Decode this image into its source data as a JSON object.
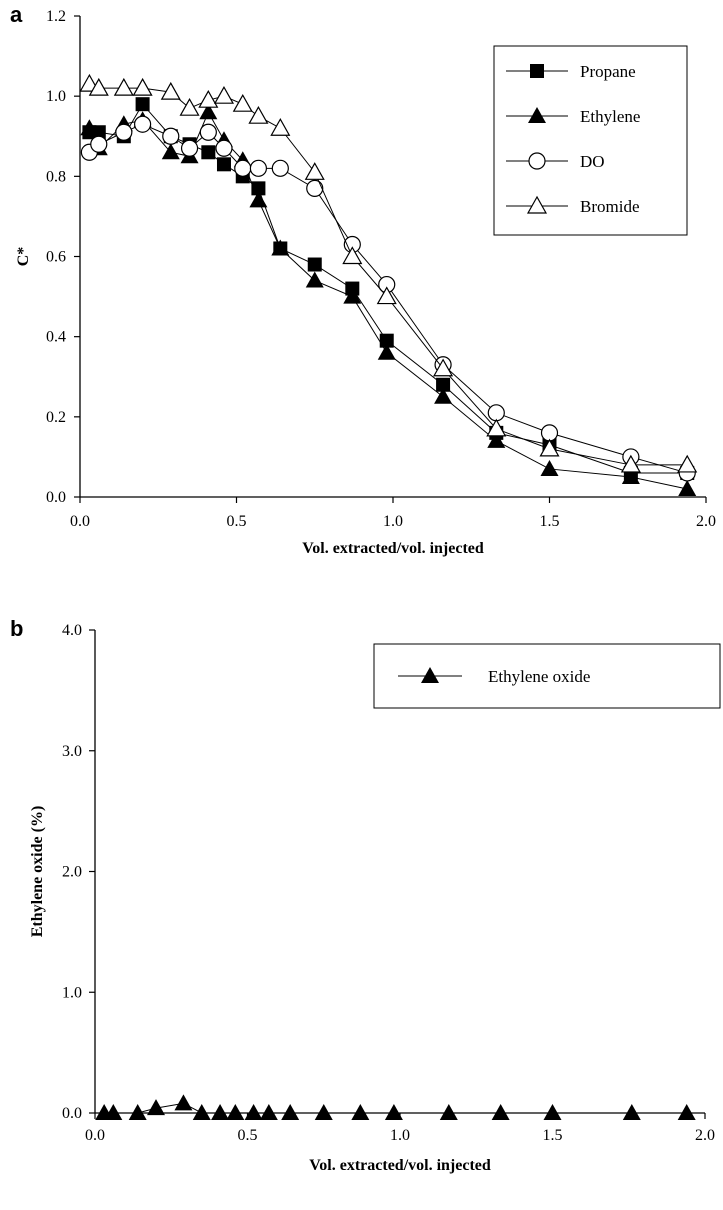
{
  "chart_data": [
    {
      "type": "line",
      "panel_label": "a",
      "title": "",
      "xlabel": "Vol. extracted/vol. injected",
      "ylabel": "C*",
      "xlim": [
        0.0,
        2.0
      ],
      "ylim": [
        0.0,
        1.2
      ],
      "xticks": [
        "0.0",
        "0.5",
        "1.0",
        "1.5",
        "2.0"
      ],
      "yticks": [
        "0.0",
        "0.2",
        "0.4",
        "0.6",
        "0.8",
        "1.0",
        "1.2"
      ],
      "grid": false,
      "legend_position": "top-right",
      "series": [
        {
          "name": "Propane",
          "marker": "filled-square",
          "x": [
            0.03,
            0.06,
            0.14,
            0.2,
            0.29,
            0.35,
            0.41,
            0.46,
            0.52,
            0.57,
            0.64,
            0.75,
            0.87,
            0.98,
            1.16,
            1.33,
            1.5,
            1.76,
            1.94
          ],
          "y": [
            0.91,
            0.91,
            0.9,
            0.98,
            0.9,
            0.88,
            0.86,
            0.83,
            0.8,
            0.77,
            0.62,
            0.58,
            0.52,
            0.39,
            0.28,
            0.16,
            0.13,
            0.06,
            0.06
          ]
        },
        {
          "name": "Ethylene",
          "marker": "filled-triangle",
          "x": [
            0.03,
            0.06,
            0.14,
            0.2,
            0.29,
            0.35,
            0.41,
            0.46,
            0.52,
            0.57,
            0.64,
            0.75,
            0.87,
            0.98,
            1.16,
            1.33,
            1.5,
            1.76,
            1.94
          ],
          "y": [
            0.92,
            0.87,
            0.93,
            0.94,
            0.86,
            0.85,
            0.96,
            0.89,
            0.84,
            0.74,
            0.62,
            0.54,
            0.5,
            0.36,
            0.25,
            0.14,
            0.07,
            0.05,
            0.02
          ]
        },
        {
          "name": "DO",
          "marker": "open-circle",
          "x": [
            0.03,
            0.06,
            0.14,
            0.2,
            0.29,
            0.35,
            0.41,
            0.46,
            0.52,
            0.57,
            0.64,
            0.75,
            0.87,
            0.98,
            1.16,
            1.33,
            1.5,
            1.76,
            1.94
          ],
          "y": [
            0.86,
            0.88,
            0.91,
            0.93,
            0.9,
            0.87,
            0.91,
            0.87,
            0.82,
            0.82,
            0.82,
            0.77,
            0.63,
            0.53,
            0.33,
            0.21,
            0.16,
            0.1,
            0.06
          ]
        },
        {
          "name": "Bromide",
          "marker": "open-triangle",
          "x": [
            0.03,
            0.06,
            0.14,
            0.2,
            0.29,
            0.35,
            0.41,
            0.46,
            0.52,
            0.57,
            0.64,
            0.75,
            0.87,
            0.98,
            1.16,
            1.33,
            1.5,
            1.76,
            1.94
          ],
          "y": [
            1.03,
            1.02,
            1.02,
            1.02,
            1.01,
            0.97,
            0.99,
            1.0,
            0.98,
            0.95,
            0.92,
            0.81,
            0.6,
            0.5,
            0.32,
            0.17,
            0.12,
            0.08,
            0.08
          ]
        }
      ]
    },
    {
      "type": "line",
      "panel_label": "b",
      "title": "",
      "xlabel": "Vol. extracted/vol. injected",
      "ylabel": "Ethylene oxide (%)",
      "xlim": [
        0.0,
        2.0
      ],
      "ylim": [
        0.0,
        4.0
      ],
      "xticks": [
        "0.0",
        "0.5",
        "1.0",
        "1.5",
        "2.0"
      ],
      "yticks": [
        "0.0",
        "1.0",
        "2.0",
        "3.0",
        "4.0"
      ],
      "grid": false,
      "legend_position": "top-right",
      "series": [
        {
          "name": "Ethylene oxide",
          "marker": "filled-triangle",
          "x": [
            0.03,
            0.06,
            0.14,
            0.2,
            0.29,
            0.35,
            0.41,
            0.46,
            0.52,
            0.57,
            0.64,
            0.75,
            0.87,
            0.98,
            1.16,
            1.33,
            1.5,
            1.76,
            1.94
          ],
          "y": [
            0.0,
            0.0,
            0.0,
            0.04,
            0.08,
            0.0,
            0.0,
            0.0,
            0.0,
            0.0,
            0.0,
            0.0,
            0.0,
            0.0,
            0.0,
            0.0,
            0.0,
            0.0,
            0.0
          ]
        }
      ]
    }
  ]
}
